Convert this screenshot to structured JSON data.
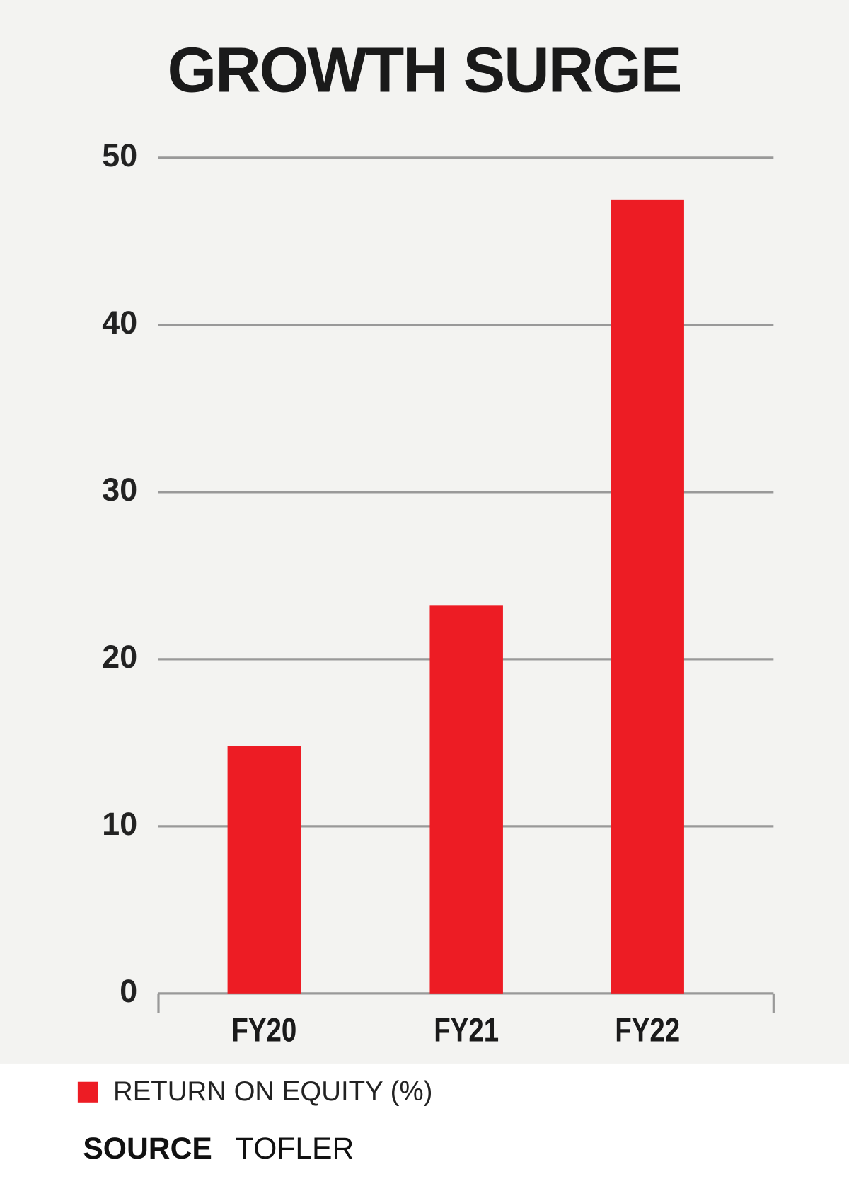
{
  "chart_data": {
    "type": "bar",
    "title": "GROWTH SURGE",
    "categories": [
      "FY20",
      "FY21",
      "FY22"
    ],
    "series": [
      {
        "name": "RETURN ON EQUITY (%)",
        "color": "#ed1c24",
        "values": [
          14.8,
          23.2,
          47.5
        ]
      }
    ],
    "ylim": [
      0,
      50
    ],
    "yticks": [
      0,
      10,
      20,
      30,
      40,
      50
    ],
    "grid": true,
    "source_label": "SOURCE",
    "source": "TOFLER"
  }
}
